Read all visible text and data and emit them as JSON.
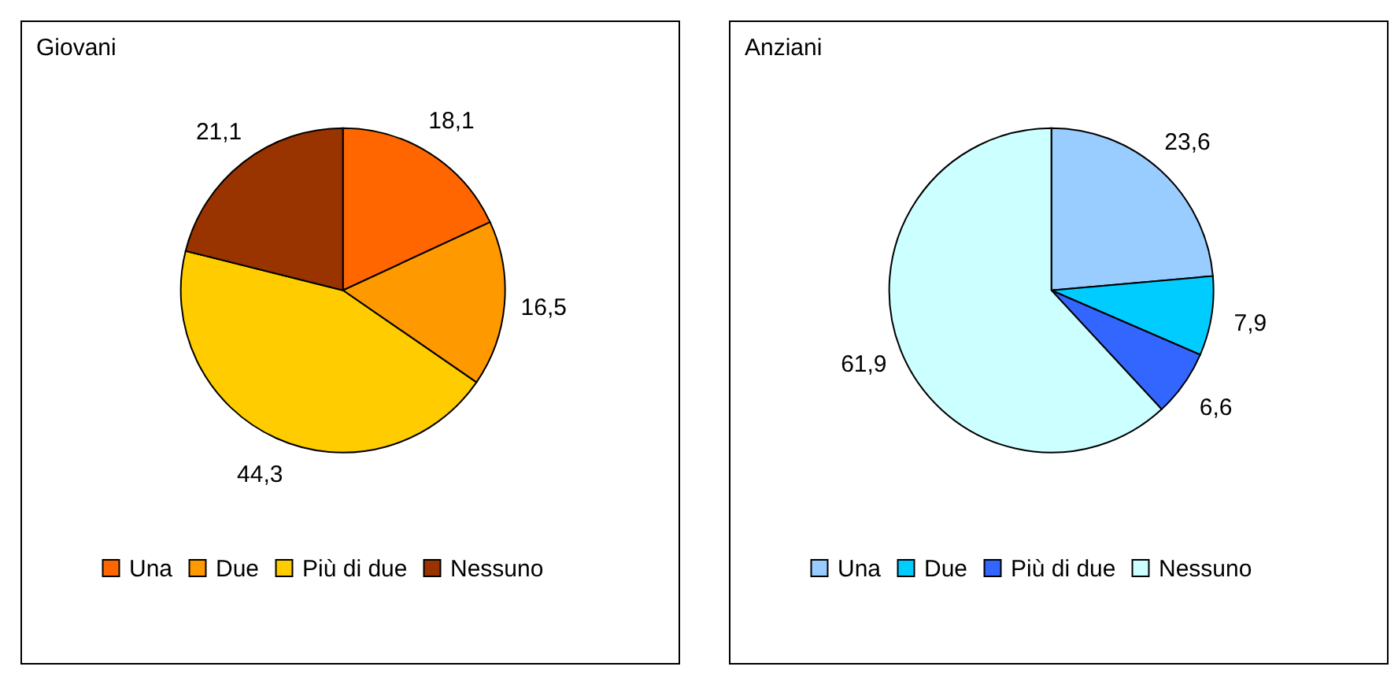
{
  "chart_data": [
    {
      "type": "pie",
      "title": "Giovani",
      "categories": [
        "Una",
        "Due",
        "Più di due",
        "Nessuno"
      ],
      "values": [
        18.1,
        16.5,
        44.3,
        21.1
      ],
      "value_labels": [
        "18,1",
        "16,5",
        "44,3",
        "21,1"
      ],
      "colors": [
        "#ff6600",
        "#ff9900",
        "#ffcc00",
        "#993300"
      ],
      "legend": "bottom"
    },
    {
      "type": "pie",
      "title": "Anziani",
      "categories": [
        "Una",
        "Due",
        "Più di due",
        "Nessuno"
      ],
      "values": [
        23.6,
        7.9,
        6.6,
        61.9
      ],
      "value_labels": [
        "23,6",
        "7,9",
        "6,6",
        "61,9"
      ],
      "colors": [
        "#99ccff",
        "#00ccff",
        "#3366ff",
        "#ccffff"
      ],
      "legend": "bottom"
    }
  ]
}
